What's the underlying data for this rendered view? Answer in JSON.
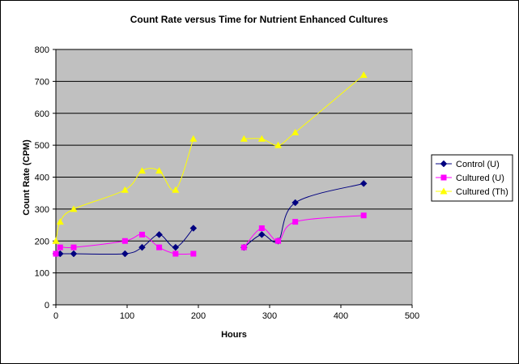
{
  "chart_data": {
    "type": "scatter",
    "title": "Count Rate versus Time for Nutrient Enhanced Cultures",
    "xlabel": "Hours",
    "ylabel": "Count Rate (CPM)",
    "xlim": [
      0,
      500
    ],
    "ylim": [
      0,
      800
    ],
    "xticks": [
      0,
      100,
      200,
      300,
      400,
      500
    ],
    "yticks": [
      0,
      100,
      200,
      300,
      400,
      500,
      600,
      700,
      800
    ],
    "grid": "horizontal",
    "plot_background": "#c0c0c0",
    "legend_position": "right",
    "series": [
      {
        "name": "Control (U)",
        "color": "#000080",
        "marker": "diamond",
        "segments": [
          [
            [
              0,
              160
            ],
            [
              6,
              160
            ],
            [
              25,
              160
            ],
            [
              97,
              160
            ],
            [
              121,
              180
            ],
            [
              145,
              220
            ],
            [
              168,
              180
            ],
            [
              193,
              240
            ]
          ],
          [
            [
              264,
              180
            ],
            [
              289,
              220
            ],
            [
              312,
              200
            ],
            [
              336,
              320
            ],
            [
              432,
              380
            ]
          ]
        ]
      },
      {
        "name": "Cultured (U)",
        "color": "#ff00ff",
        "marker": "square",
        "segments": [
          [
            [
              0,
              160
            ],
            [
              6,
              180
            ],
            [
              25,
              180
            ],
            [
              97,
              200
            ],
            [
              121,
              220
            ],
            [
              145,
              180
            ],
            [
              168,
              160
            ],
            [
              193,
              160
            ]
          ],
          [
            [
              264,
              180
            ],
            [
              289,
              240
            ],
            [
              312,
              200
            ],
            [
              336,
              260
            ],
            [
              432,
              280
            ]
          ]
        ]
      },
      {
        "name": "Cultured (Th)",
        "color": "#ffff00",
        "marker": "triangle",
        "segments": [
          [
            [
              0,
              200
            ],
            [
              6,
              260
            ],
            [
              25,
              300
            ],
            [
              97,
              360
            ],
            [
              121,
              420
            ],
            [
              145,
              420
            ],
            [
              168,
              360
            ],
            [
              193,
              520
            ]
          ],
          [
            [
              264,
              520
            ],
            [
              289,
              520
            ],
            [
              312,
              500
            ],
            [
              336,
              540
            ],
            [
              432,
              720
            ]
          ]
        ]
      }
    ]
  }
}
